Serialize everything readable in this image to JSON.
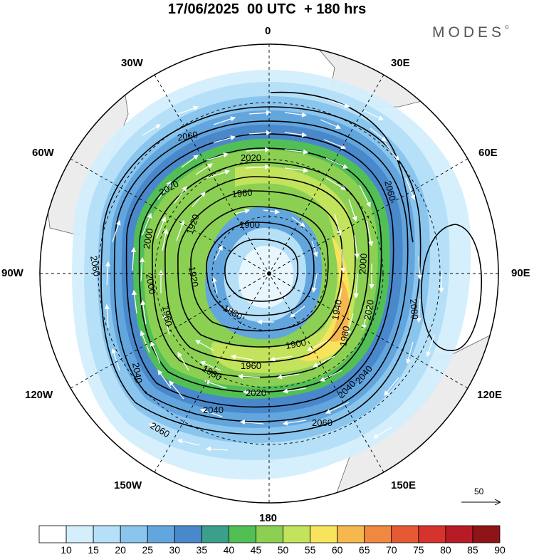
{
  "title": "17/06/2025  00 UTC  + 180 hrs",
  "brand": "MODES",
  "brand_mark": "©",
  "longitude_labels": {
    "lon_0": "0",
    "lon_30e": "30E",
    "lon_60e": "60E",
    "lon_90e": "90E",
    "lon_120e": "120E",
    "lon_150e": "150E",
    "lon_180": "180",
    "lon_150w": "150W",
    "lon_120w": "120W",
    "lon_90w": "90W",
    "lon_60w": "60W",
    "lon_30w": "30W"
  },
  "contour_labels": [
    "2060",
    "2020",
    "1960",
    "2020",
    "1900",
    "1920",
    "2000",
    "2060",
    "2060",
    "2000",
    "1920",
    "1880",
    "1960",
    "1900",
    "1980",
    "1940",
    "1980",
    "2020",
    "2000",
    "2040",
    "1960",
    "2020",
    "2040",
    "2080",
    "2040",
    "2060",
    "2060",
    "2040"
  ],
  "wind_scale": {
    "label": "50"
  },
  "colorbar": {
    "labels": [
      "10",
      "15",
      "20",
      "25",
      "30",
      "35",
      "40",
      "45",
      "50",
      "55",
      "60",
      "65",
      "70",
      "75",
      "80",
      "85",
      "90"
    ],
    "colors": [
      "#ffffff",
      "#d4eefc",
      "#b5e0f8",
      "#8ac5ee",
      "#63a6de",
      "#4a88cc",
      "#3b9f8c",
      "#52bf55",
      "#8bd053",
      "#c3e35c",
      "#f8e35d",
      "#f5b84c",
      "#f0883f",
      "#e55a34",
      "#d5332b",
      "#b71c26",
      "#8f1418"
    ]
  },
  "colors": {
    "land": "#ececec",
    "contour": "#000000",
    "graticule": "#000000"
  }
}
